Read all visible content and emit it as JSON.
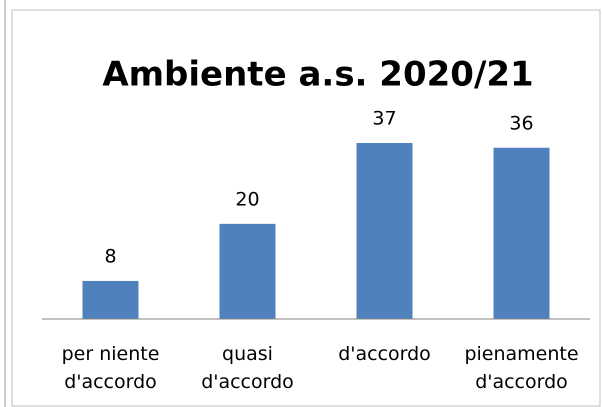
{
  "chart_data": {
    "type": "bar",
    "title": "Ambiente a.s. 2020/21",
    "categories": [
      "per niente d'accordo",
      "quasi d'accordo",
      "d'accordo",
      "pienamente d'accordo"
    ],
    "values": [
      8,
      20,
      37,
      36
    ],
    "color": "#4f81bd"
  }
}
